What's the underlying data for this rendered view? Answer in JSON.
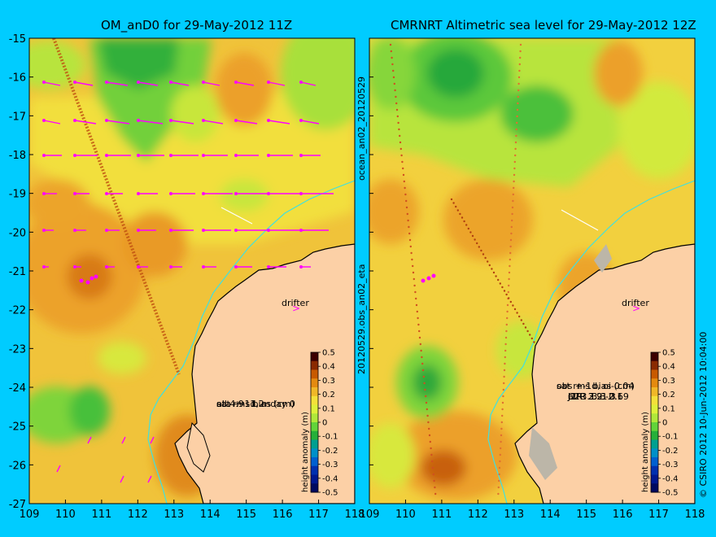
{
  "left_panel": {
    "title": "OM_anD0 for 29-May-2012 11Z",
    "drifter_label": "drifter",
    "stats": {
      "line1": "eta +-1d, mday 0",
      "line2": "sat rms bias (cm)",
      "line3": "all 4.9 -1.2"
    }
  },
  "right_panel": {
    "title": "CMRNRT Altimetric sea level  for 29-May-2012 12Z",
    "drifter_label": "drifter",
    "stats": {
      "line1": "obs +-1d, oi-0.04",
      "line2": "sat rms bias (cm)",
      "rows": [
        {
          "sat": "J1R",
          "rms": "2.9",
          "bias": "-2"
        },
        {
          "sat": "J2R",
          "rms": "3.2",
          "bias": "-2.1"
        },
        {
          "sat": "C2R",
          "rms": "3.3",
          "bias": "0.69"
        },
        {
          "sat": "all",
          "rms": "3.1",
          "bias": "-1.3"
        }
      ]
    }
  },
  "side_labels": {
    "vertical_left": "ocean_an02_20120529",
    "vertical_right": "20120529.obs_an02_eta",
    "copyright": "© CSIRO 2012   10-Jun-2012 10:04:00"
  },
  "axes": {
    "lat_ticks": [
      "-15",
      "-16",
      "-17",
      "-18",
      "-19",
      "-20",
      "-21",
      "-22",
      "-23",
      "-24",
      "-25",
      "-26",
      "-27"
    ],
    "lon_ticks": [
      "109",
      "110",
      "111",
      "112",
      "113",
      "114",
      "115",
      "116",
      "117",
      "118"
    ]
  },
  "colorbar": {
    "label": "height anomaly (m)",
    "ticks": [
      "0.5",
      "0.4",
      "0.3",
      "0.2",
      "0.1",
      "0",
      "-0.1",
      "-0.2",
      "-0.3",
      "-0.4",
      "-0.5"
    ],
    "colors": [
      "#3d0000",
      "#8a2a00",
      "#c85a00",
      "#e48a10",
      "#f0b828",
      "#f4e13a",
      "#dff03a",
      "#b0e83a",
      "#62d43a",
      "#26b03a",
      "#00a090",
      "#0090c8",
      "#0060d0",
      "#0030b0",
      "#001890",
      "#000a60"
    ]
  }
}
